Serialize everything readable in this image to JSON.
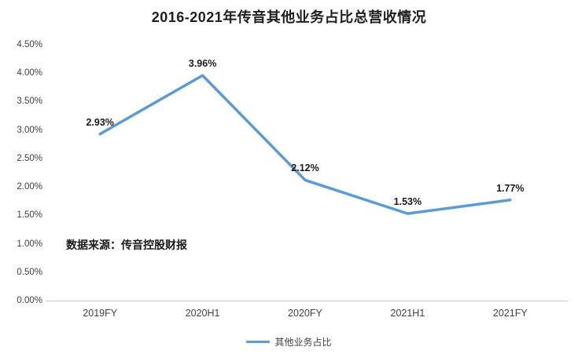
{
  "chart": {
    "title": "2016-2021年传音其他业务占比总营收情况",
    "source_note": "数据来源：传音控股财报",
    "legend": "其他业务占比"
  },
  "chart_data": {
    "type": "line",
    "title": "2016-2021年传音其他业务占比总营收情况",
    "categories": [
      "2019FY",
      "2020H1",
      "2020FY",
      "2021H1",
      "2021FY"
    ],
    "series": [
      {
        "name": "其他业务占比",
        "values": [
          2.93,
          3.96,
          2.12,
          1.53,
          1.77
        ]
      }
    ],
    "point_labels": [
      "2.93%",
      "3.96%",
      "2.12%",
      "1.53%",
      "1.77%"
    ],
    "xlabel": "",
    "ylabel": "",
    "ylim": [
      0,
      4.5
    ],
    "yticks": [
      "0.00%",
      "0.50%",
      "1.00%",
      "1.50%",
      "2.00%",
      "2.50%",
      "3.00%",
      "3.50%",
      "4.00%",
      "4.50%"
    ],
    "grid": false,
    "legend_position": "bottom",
    "line_color": "#5B9BD5",
    "axis_color": "#c9c9c9"
  }
}
